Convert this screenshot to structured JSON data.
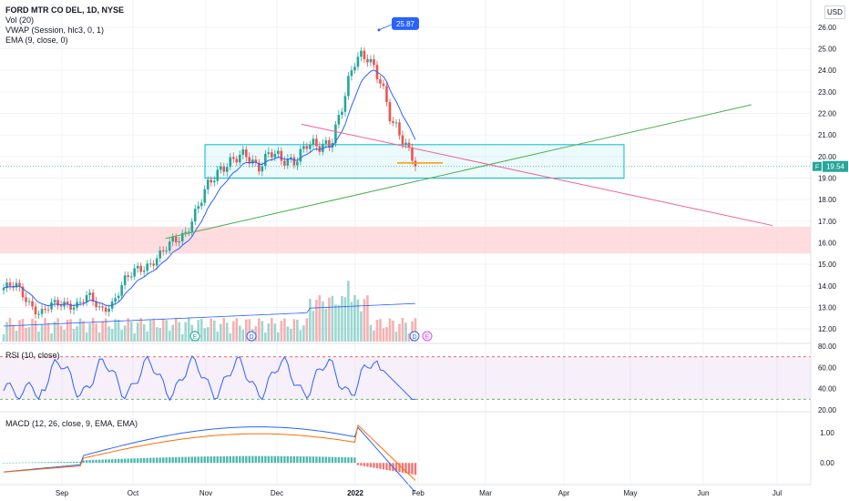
{
  "header": {
    "symbol": "FORD MTR CO DEL, 1D, NYSE",
    "indicators": [
      "Vol (20)",
      "VWAP (Session, hlc3, 0, 1)",
      "EMA (9, close, 0)"
    ]
  },
  "currency": "USD",
  "price_badge": {
    "letter": "F",
    "value": "19.54"
  },
  "high_callout": "25.87",
  "rsi": {
    "label": "RSI (10, close)",
    "ticks": [
      "80.00",
      "60.00",
      "40.00",
      "20.00"
    ],
    "upper": 70,
    "lower": 30
  },
  "macd": {
    "label": "MACD (12, 26, close, 9, EMA, EMA)",
    "ticks": [
      "1.00",
      "0.00"
    ]
  },
  "events": {
    "earnings": "E",
    "dividend": "D"
  },
  "colors": {
    "up": "#26a69a",
    "down": "#ef5350",
    "ema": "#2962ff",
    "volume_ma": "#2962ff",
    "rsi": "#2962ff",
    "macd_line": "#2962ff",
    "signal_line": "#ff6d00",
    "box": "#00bcd4",
    "zone": "#ffcdd2",
    "trend_up": "#4caf50",
    "trend_down": "#f06292"
  },
  "chart_data": {
    "type": "candlestick",
    "y_axis": {
      "ticks": [
        26,
        25,
        24,
        23,
        22,
        21,
        20,
        19,
        18,
        17,
        16,
        15,
        14,
        13,
        12
      ],
      "range": [
        11.5,
        26.5
      ]
    },
    "x_axis": {
      "ticks": [
        "Sep",
        "Oct",
        "Nov",
        "Dec",
        "2022",
        "Feb",
        "Mar",
        "Apr",
        "May",
        "Jun",
        "Jul"
      ]
    },
    "candles_weekly_approx": [
      {
        "o": 13.9,
        "c": 14.0
      },
      {
        "o": 14.0,
        "c": 13.3
      },
      {
        "o": 13.3,
        "c": 12.7
      },
      {
        "o": 12.7,
        "c": 13.1
      },
      {
        "o": 13.1,
        "c": 13.2
      },
      {
        "o": 13.2,
        "c": 13.1
      },
      {
        "o": 13.1,
        "c": 13.5
      },
      {
        "o": 13.5,
        "c": 12.9
      },
      {
        "o": 12.9,
        "c": 13.2
      },
      {
        "o": 13.2,
        "c": 14.2
      },
      {
        "o": 14.2,
        "c": 14.8
      },
      {
        "o": 14.8,
        "c": 15.0
      },
      {
        "o": 15.0,
        "c": 15.4
      },
      {
        "o": 15.4,
        "c": 16.1
      },
      {
        "o": 16.1,
        "c": 16.5
      },
      {
        "o": 16.5,
        "c": 17.5
      },
      {
        "o": 17.5,
        "c": 18.8
      },
      {
        "o": 18.8,
        "c": 19.6
      },
      {
        "o": 19.6,
        "c": 19.8
      },
      {
        "o": 19.8,
        "c": 20.0
      },
      {
        "o": 20.0,
        "c": 19.6
      },
      {
        "o": 19.6,
        "c": 20.2
      },
      {
        "o": 20.2,
        "c": 19.7
      },
      {
        "o": 19.7,
        "c": 19.9
      },
      {
        "o": 19.9,
        "c": 20.6
      },
      {
        "o": 20.6,
        "c": 20.3
      },
      {
        "o": 20.3,
        "c": 20.7
      },
      {
        "o": 20.7,
        "c": 22.5
      },
      {
        "o": 22.5,
        "c": 24.3
      },
      {
        "o": 24.3,
        "c": 24.8
      },
      {
        "o": 24.8,
        "c": 23.8
      },
      {
        "o": 23.8,
        "c": 21.5
      },
      {
        "o": 21.5,
        "c": 20.8
      },
      {
        "o": 20.8,
        "c": 19.9
      },
      {
        "o": 19.9,
        "c": 19.54
      }
    ],
    "support_box": [
      19.0,
      20.55
    ],
    "resistance_zone": [
      15.5,
      16.75
    ],
    "trendline_up": [
      {
        "x": 0.195,
        "y": 16.2
      },
      {
        "x": 0.885,
        "y": 22.4
      }
    ],
    "trendline_down": [
      {
        "x": 0.355,
        "y": 21.5
      },
      {
        "x": 0.91,
        "y": 16.8
      }
    ],
    "last_price": 19.54,
    "high": 25.87
  }
}
